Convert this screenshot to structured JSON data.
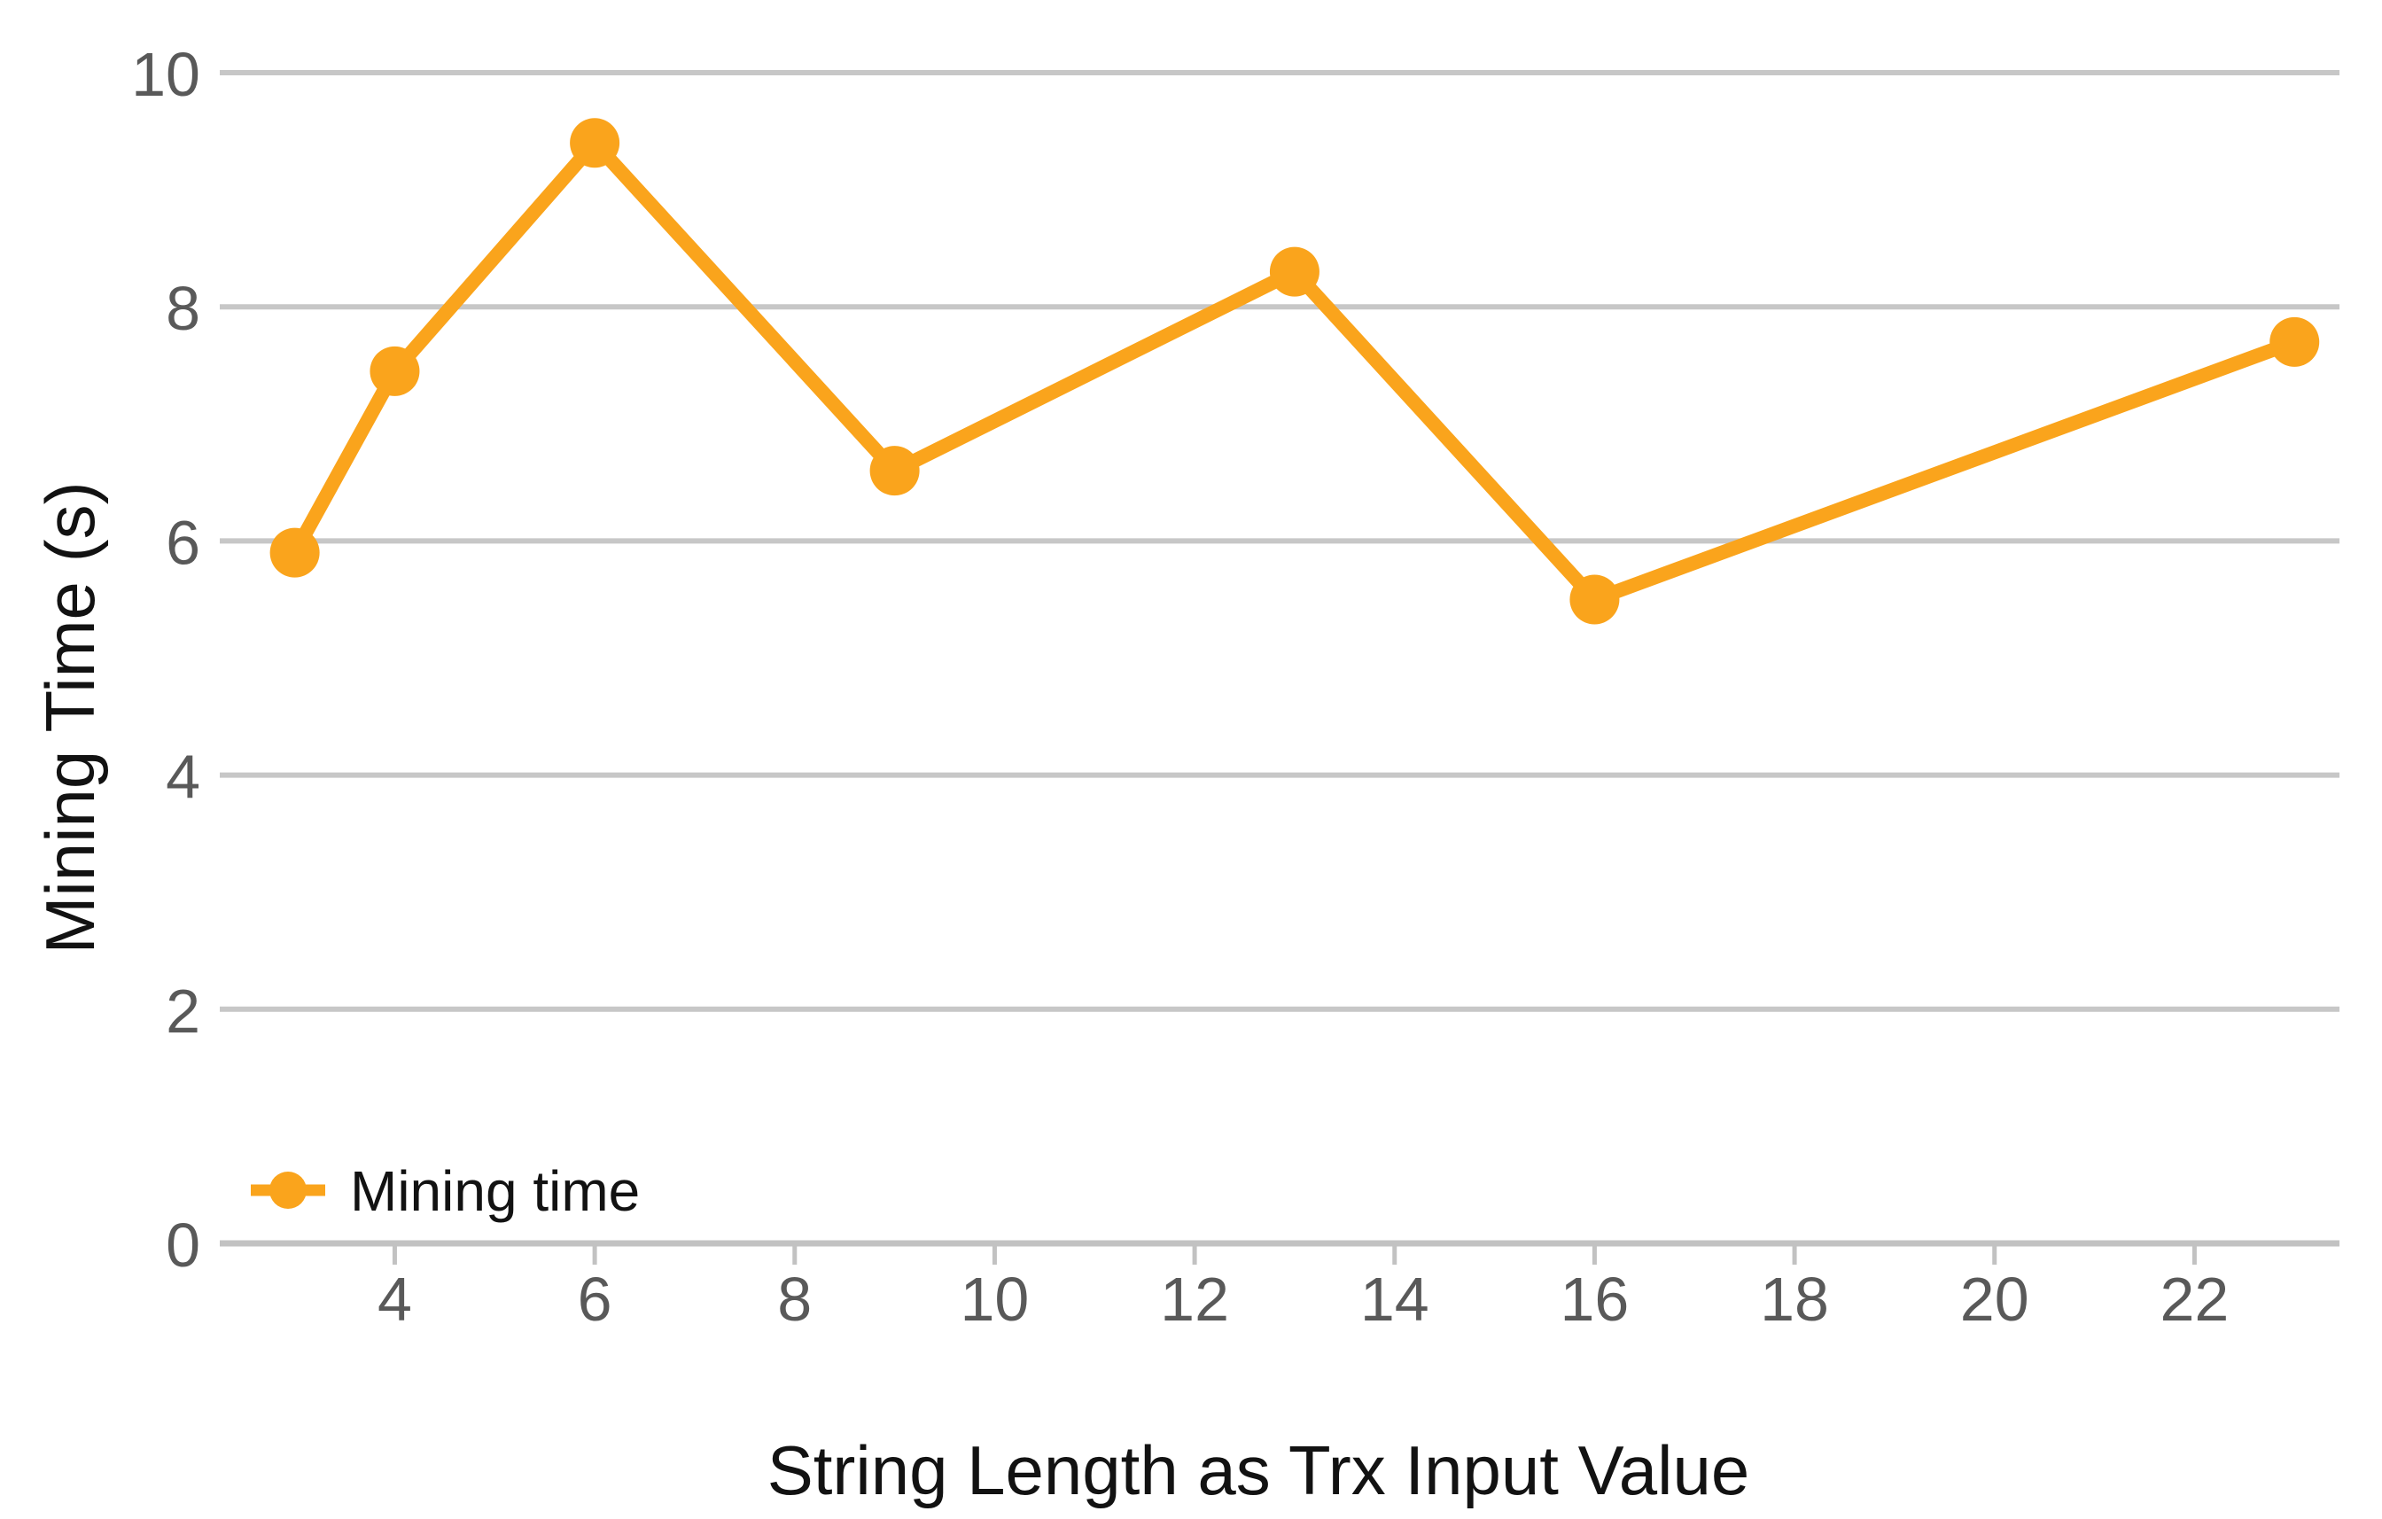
{
  "chart_data": {
    "type": "line",
    "title": "",
    "xlabel": "String Length as Trx Input Value",
    "ylabel": "Mining Time (s)",
    "series": [
      {
        "name": "Mining time",
        "points": [
          {
            "x": 3,
            "y": 5.9
          },
          {
            "x": 4,
            "y": 7.45
          },
          {
            "x": 6,
            "y": 9.4
          },
          {
            "x": 9,
            "y": 6.6
          },
          {
            "x": 13,
            "y": 8.3
          },
          {
            "x": 16,
            "y": 5.5
          },
          {
            "x": 23,
            "y": 7.7
          }
        ]
      }
    ],
    "legend": {
      "label": "Mining time",
      "position": "bottom-left-inside"
    },
    "x_ticks": [
      4,
      6,
      8,
      10,
      12,
      14,
      16,
      18,
      20,
      22
    ],
    "y_ticks": [
      0,
      2,
      4,
      6,
      8,
      10
    ],
    "xlim": [
      2.25,
      23.45
    ],
    "ylim": [
      0,
      10
    ],
    "grid": "horizontal-only",
    "colors": {
      "line": "#FAA41C",
      "marker": "#FAA41C",
      "gridline": "#C7C7C7",
      "axis_line": "#C2C2C2",
      "tick_label": "#595959",
      "axis_title": "#121212"
    }
  }
}
